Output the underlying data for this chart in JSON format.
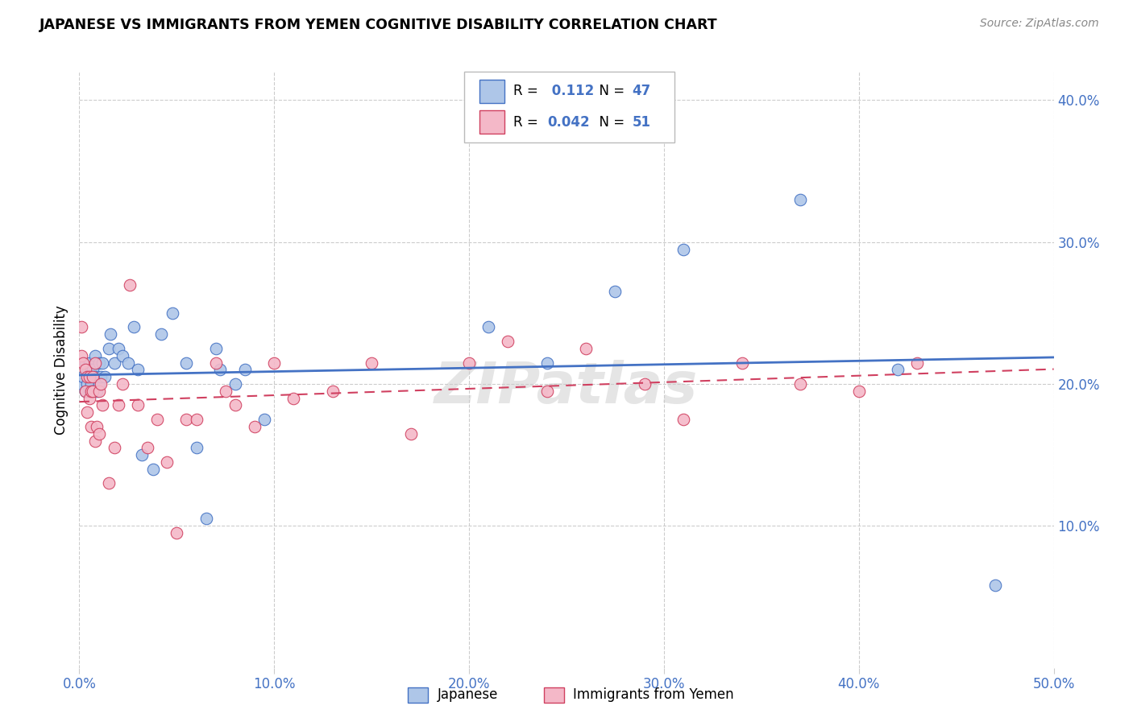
{
  "title": "JAPANESE VS IMMIGRANTS FROM YEMEN COGNITIVE DISABILITY CORRELATION CHART",
  "source": "Source: ZipAtlas.com",
  "ylabel": "Cognitive Disability",
  "xlim": [
    0.0,
    0.5
  ],
  "ylim": [
    0.0,
    0.42
  ],
  "xticks": [
    0.0,
    0.1,
    0.2,
    0.3,
    0.4,
    0.5
  ],
  "yticks": [
    0.1,
    0.2,
    0.3,
    0.4
  ],
  "ytick_labels": [
    "10.0%",
    "20.0%",
    "30.0%",
    "40.0%"
  ],
  "xtick_labels": [
    "0.0%",
    "10.0%",
    "20.0%",
    "30.0%",
    "40.0%",
    "50.0%"
  ],
  "R_japanese": 0.112,
  "N_japanese": 47,
  "R_yemen": 0.042,
  "N_yemen": 51,
  "legend_label1": "Japanese",
  "legend_label2": "Immigrants from Yemen",
  "color_japanese": "#aec6e8",
  "color_yemen": "#f4b8c8",
  "line_color_japanese": "#4472c4",
  "line_color_yemen": "#d04060",
  "background_color": "#ffffff",
  "watermark": "ZIPatlas",
  "japanese_x": [
    0.001,
    0.002,
    0.003,
    0.003,
    0.004,
    0.004,
    0.005,
    0.005,
    0.006,
    0.006,
    0.007,
    0.007,
    0.008,
    0.008,
    0.009,
    0.01,
    0.01,
    0.011,
    0.012,
    0.013,
    0.015,
    0.016,
    0.018,
    0.02,
    0.022,
    0.025,
    0.028,
    0.03,
    0.032,
    0.038,
    0.042,
    0.048,
    0.055,
    0.06,
    0.065,
    0.07,
    0.072,
    0.08,
    0.085,
    0.095,
    0.21,
    0.24,
    0.275,
    0.31,
    0.37,
    0.42,
    0.47
  ],
  "japanese_y": [
    0.2,
    0.205,
    0.215,
    0.195,
    0.21,
    0.2,
    0.215,
    0.195,
    0.21,
    0.2,
    0.195,
    0.21,
    0.205,
    0.22,
    0.195,
    0.2,
    0.215,
    0.205,
    0.215,
    0.205,
    0.225,
    0.235,
    0.215,
    0.225,
    0.22,
    0.215,
    0.24,
    0.21,
    0.15,
    0.14,
    0.235,
    0.25,
    0.215,
    0.155,
    0.105,
    0.225,
    0.21,
    0.2,
    0.21,
    0.175,
    0.24,
    0.215,
    0.265,
    0.295,
    0.33,
    0.21,
    0.058
  ],
  "yemen_x": [
    0.001,
    0.001,
    0.002,
    0.003,
    0.003,
    0.004,
    0.004,
    0.005,
    0.005,
    0.006,
    0.006,
    0.007,
    0.007,
    0.008,
    0.008,
    0.009,
    0.01,
    0.01,
    0.011,
    0.012,
    0.015,
    0.018,
    0.02,
    0.022,
    0.026,
    0.03,
    0.035,
    0.04,
    0.045,
    0.05,
    0.055,
    0.06,
    0.07,
    0.075,
    0.08,
    0.09,
    0.1,
    0.11,
    0.13,
    0.15,
    0.17,
    0.2,
    0.22,
    0.24,
    0.26,
    0.29,
    0.31,
    0.34,
    0.37,
    0.4,
    0.43
  ],
  "yemen_y": [
    0.24,
    0.22,
    0.215,
    0.21,
    0.195,
    0.205,
    0.18,
    0.205,
    0.19,
    0.195,
    0.17,
    0.205,
    0.195,
    0.215,
    0.16,
    0.17,
    0.165,
    0.195,
    0.2,
    0.185,
    0.13,
    0.155,
    0.185,
    0.2,
    0.27,
    0.185,
    0.155,
    0.175,
    0.145,
    0.095,
    0.175,
    0.175,
    0.215,
    0.195,
    0.185,
    0.17,
    0.215,
    0.19,
    0.195,
    0.215,
    0.165,
    0.215,
    0.23,
    0.195,
    0.225,
    0.2,
    0.175,
    0.215,
    0.2,
    0.195,
    0.215
  ]
}
